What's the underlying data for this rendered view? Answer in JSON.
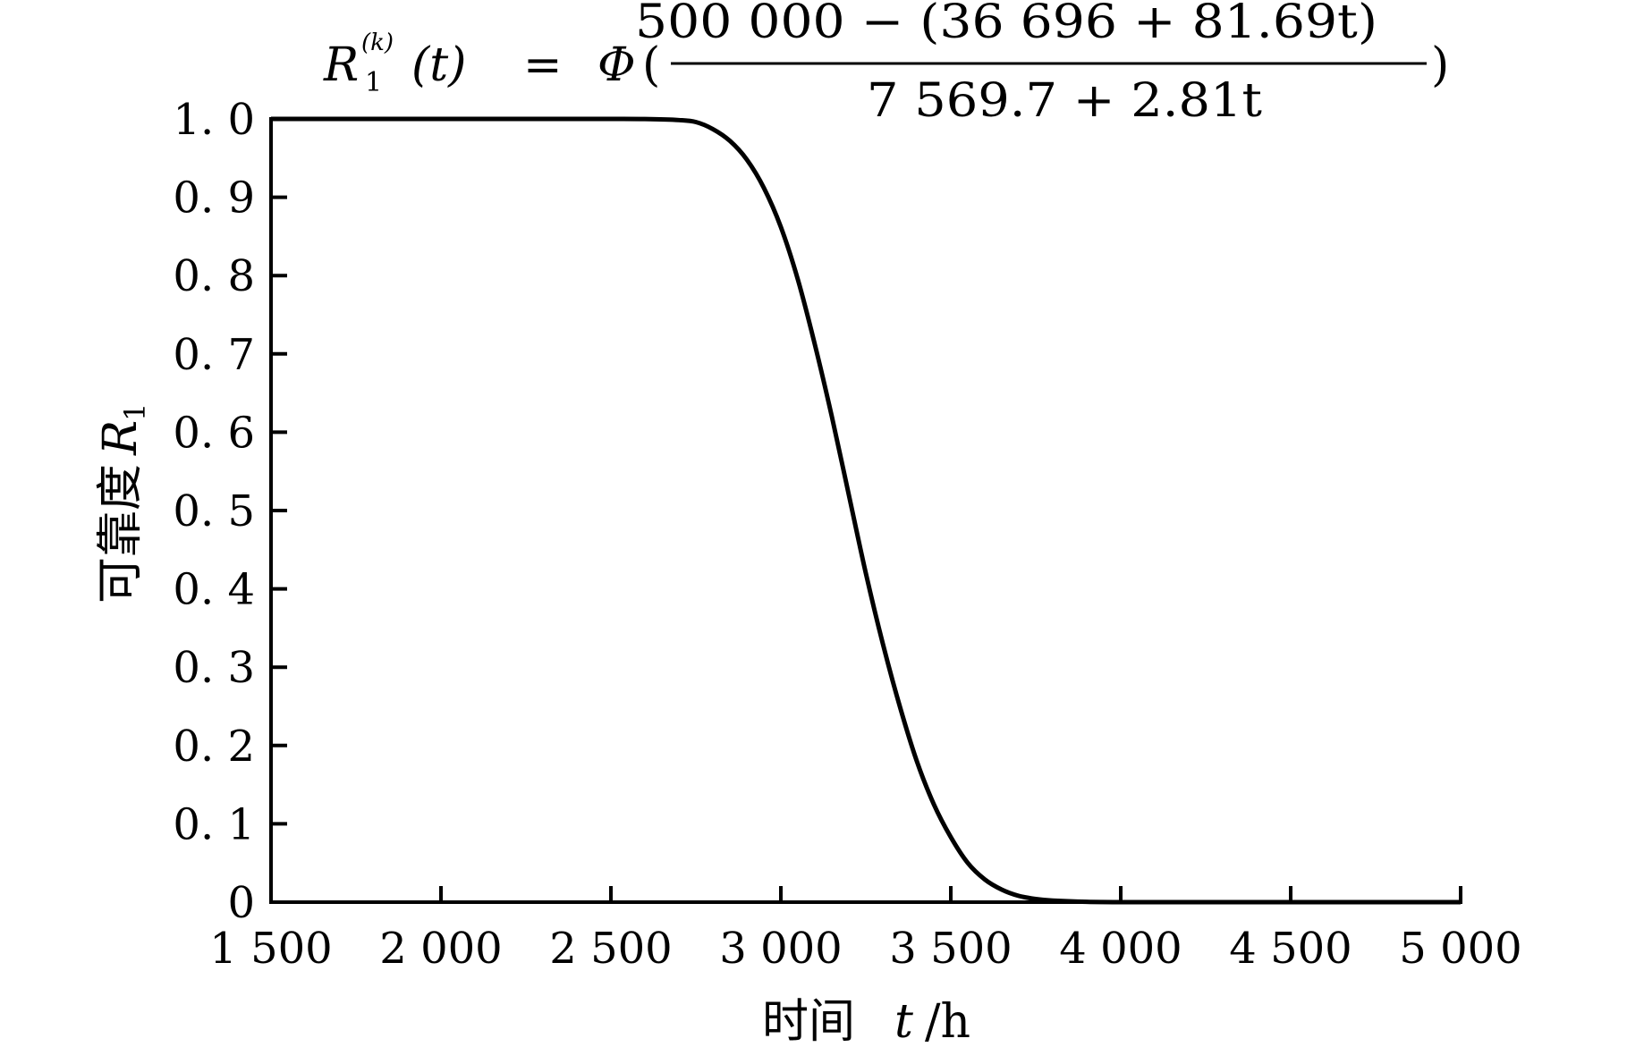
{
  "chart_data": {
    "type": "line",
    "title": {
      "lhs_symbol": "R",
      "lhs_superscript": "(k)",
      "lhs_subscript": "1",
      "lhs_argument": "(t)",
      "equals": "=",
      "function": "Φ",
      "open_paren": "(",
      "close_paren": ")",
      "numerator": "500 000 − (36 696 + 81.69t)",
      "denominator": "7 569.7 + 2.81t"
    },
    "xlabel": {
      "prefix": "时间",
      "variable": "t",
      "unit": "/h"
    },
    "ylabel": {
      "prefix": "可靠度",
      "symbol": "R",
      "subscript": "1"
    },
    "xlim": [
      1500,
      5000
    ],
    "ylim": [
      0,
      1.0
    ],
    "x_ticks": [
      1500,
      2000,
      2500,
      3000,
      3500,
      4000,
      4500,
      5000
    ],
    "x_tick_labels": [
      "1 500",
      "2 000",
      "2 500",
      "3 000",
      "3 500",
      "4 000",
      "4 500",
      "5 000"
    ],
    "y_ticks": [
      0,
      0.1,
      0.2,
      0.3,
      0.4,
      0.5,
      0.6,
      0.7,
      0.8,
      0.9,
      1.0
    ],
    "y_tick_labels": [
      "0",
      "0. 1",
      "0. 2",
      "0. 3",
      "0. 4",
      "0. 5",
      "0. 6",
      "0. 7",
      "0. 8",
      "0. 9",
      "1. 0"
    ],
    "grid": false,
    "series": [
      {
        "x": [
          1500,
          1750,
          2000,
          2250,
          2500,
          2600,
          2700,
          2750,
          2800,
          2850,
          2900,
          2950,
          3000,
          3050,
          3100,
          3150,
          3200,
          3250,
          3300,
          3350,
          3400,
          3450,
          3500,
          3550,
          3600,
          3650,
          3700,
          3750,
          3800,
          3900,
          4000,
          4250,
          4500,
          4750,
          5000
        ],
        "y": [
          1.0,
          1.0,
          1.0,
          1.0,
          1.0,
          0.9998,
          0.9985,
          0.996,
          0.987,
          0.972,
          0.948,
          0.912,
          0.862,
          0.795,
          0.712,
          0.62,
          0.52,
          0.42,
          0.33,
          0.25,
          0.18,
          0.125,
          0.083,
          0.05,
          0.029,
          0.016,
          0.008,
          0.004,
          0.002,
          0.0004,
          0.0,
          0.0,
          0.0,
          0.0,
          0.0
        ],
        "color": "#000000"
      }
    ]
  }
}
